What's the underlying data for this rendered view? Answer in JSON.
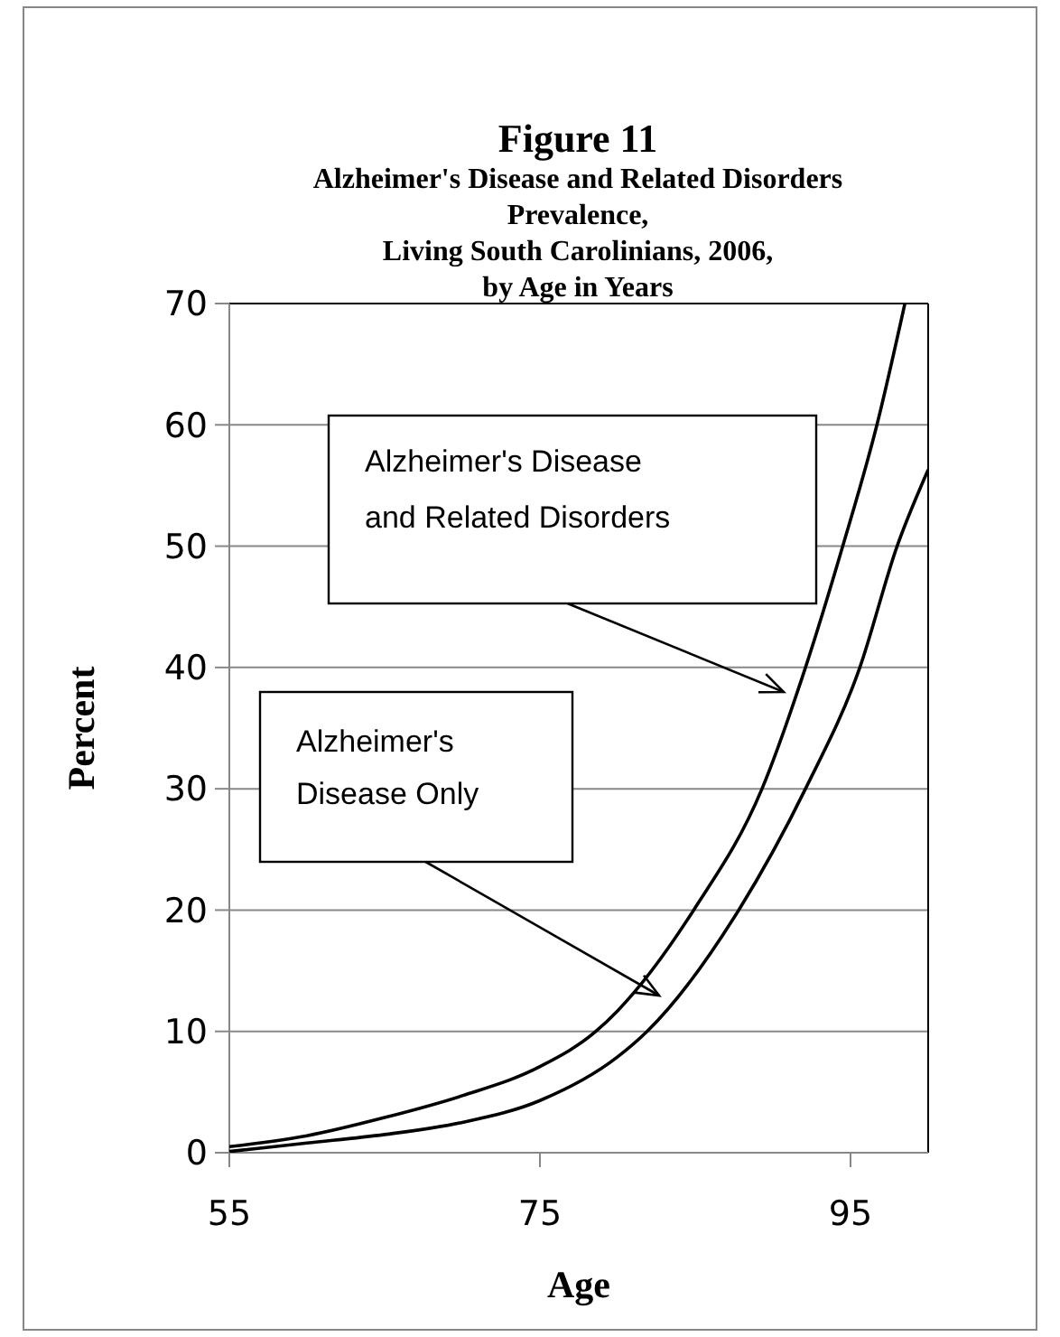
{
  "chart_data": {
    "type": "line",
    "title": "Figure 11",
    "subtitle": "Alzheimer's Disease and Related Disorders\nPrevalence,\nLiving South Carolinians, 2006,\nby Age in Years",
    "xlabel": "Age",
    "ylabel": "Percent",
    "xlim": [
      55,
      100
    ],
    "xticks": [
      55,
      75,
      95
    ],
    "ylim": [
      0,
      70
    ],
    "yticks": [
      0,
      10,
      20,
      30,
      40,
      50,
      60,
      70
    ],
    "grid": "y",
    "marker": "none",
    "line_style": "solid",
    "series": [
      {
        "color": "#000000",
        "x": [
          55,
          60,
          65,
          70,
          75,
          78.6,
          80,
          84.9,
          89.3,
          92.1,
          94.5,
          96.7,
          98.5
        ],
        "values": [
          0.5,
          1.4,
          2.9,
          4.7,
          7.1,
          10,
          11.7,
          20,
          30,
          40,
          50,
          60,
          70
        ]
      },
      {
        "color": "#000000",
        "x": [
          55,
          60,
          65,
          70,
          75,
          80,
          81.9,
          87.8,
          92.1,
          95.6,
          98,
          100
        ],
        "values": [
          0.1,
          0.8,
          1.5,
          2.5,
          4.3,
          7.9,
          10,
          20,
          30,
          40,
          50,
          56.3
        ]
      }
    ],
    "annotations": [
      "Alzheimer's Disease\nand Related Disorders",
      "Alzheimer's\nDisease Only"
    ]
  }
}
